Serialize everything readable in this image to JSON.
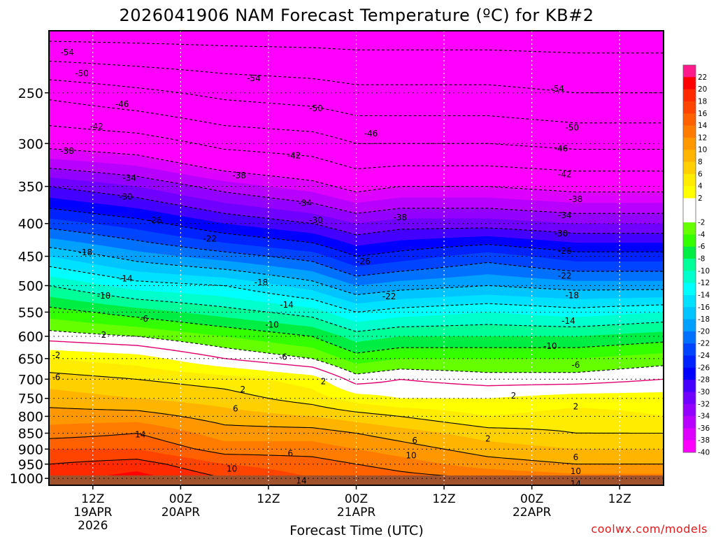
{
  "chart_data": {
    "type": "heatmap",
    "title": "2026041906 NAM Forecast Temperature (ºC) for KB#2",
    "xlabel": "Forecast Time (UTC)",
    "ylabel": "",
    "watermark": "coolwx.com/models",
    "y_ticks": [
      "250",
      "300",
      "350",
      "400",
      "450",
      "500",
      "550",
      "600",
      "650",
      "700",
      "750",
      "800",
      "850",
      "900",
      "950",
      "1000"
    ],
    "y_pressure_values": [
      250,
      300,
      350,
      400,
      450,
      500,
      550,
      600,
      650,
      700,
      750,
      800,
      850,
      900,
      950,
      1000
    ],
    "y_range_hpa": [
      200,
      1025
    ],
    "y_scale": "log",
    "x_range_hours": [
      0,
      84
    ],
    "x_ticks": [
      {
        "hour": 6,
        "labels": [
          "12Z",
          "19APR",
          "2026"
        ]
      },
      {
        "hour": 18,
        "labels": [
          "00Z",
          "20APR"
        ]
      },
      {
        "hour": 30,
        "labels": [
          "12Z"
        ]
      },
      {
        "hour": 42,
        "labels": [
          "00Z",
          "21APR"
        ]
      },
      {
        "hour": 54,
        "labels": [
          "12Z"
        ]
      },
      {
        "hour": 66,
        "labels": [
          "00Z",
          "22APR"
        ]
      },
      {
        "hour": 78,
        "labels": [
          "12Z"
        ]
      }
    ],
    "grid": true,
    "colorbar_labels": [
      "22",
      "20",
      "18",
      "16",
      "14",
      "12",
      "10",
      "8",
      "6",
      "4",
      "2",
      "-2",
      "-4",
      "-6",
      "-8",
      "-10",
      "-12",
      "-14",
      "-16",
      "-18",
      "-20",
      "-22",
      "-24",
      "-26",
      "-28",
      "-30",
      "-32",
      "-34",
      "-36",
      "-38",
      "-40"
    ],
    "colorbar_levels": [
      24,
      22,
      20,
      18,
      16,
      14,
      12,
      10,
      8,
      6,
      4,
      2,
      0,
      -2,
      -4,
      -6,
      -8,
      -10,
      -12,
      -14,
      -16,
      -18,
      -20,
      -22,
      -24,
      -26,
      -28,
      -30,
      -32,
      -34,
      -36,
      -38,
      -40
    ],
    "colorbar_colors": [
      "#ff1a8c",
      "#ff0000",
      "#ff2a00",
      "#ff4400",
      "#ff6000",
      "#ff7c00",
      "#ff9800",
      "#ffb400",
      "#ffd000",
      "#ffec00",
      "#ffff00",
      "#ffffff",
      "#ffffff",
      "#66ff00",
      "#33ff00",
      "#00ee44",
      "#00ff99",
      "#00ffcc",
      "#00ffff",
      "#00e0ff",
      "#00c4ff",
      "#00a0ff",
      "#0070ff",
      "#0044ff",
      "#0022ff",
      "#0000ff",
      "#4400ff",
      "#7000ff",
      "#9400ff",
      "#b800ff",
      "#dd00ff",
      "#ff00ff"
    ],
    "temperature_profile": {
      "pressure_hpa": [
        200,
        250,
        300,
        350,
        400,
        450,
        500,
        550,
        600,
        650,
        700,
        750,
        800,
        850,
        900,
        950,
        1000,
        1025
      ],
      "series": [
        {
          "hour": 0,
          "temp_c": [
            -60,
            -47,
            -39,
            -30,
            -23,
            -16,
            -10,
            -5,
            -1,
            4,
            7,
            9,
            11,
            13,
            16,
            18,
            19,
            19
          ]
        },
        {
          "hour": 12,
          "temp_c": [
            -60,
            -49,
            -40,
            -32,
            -25,
            -19,
            -13,
            -7,
            -2,
            3,
            6,
            8,
            11,
            14,
            16,
            19,
            21,
            21
          ]
        },
        {
          "hour": 24,
          "temp_c": [
            -60,
            -51,
            -43,
            -35,
            -28,
            -21,
            -14,
            -9,
            -4,
            0,
            5,
            7,
            9,
            11,
            13,
            16,
            18,
            18
          ]
        },
        {
          "hour": 36,
          "temp_c": [
            -60,
            -52,
            -44,
            -37,
            -30,
            -23,
            -17,
            -11,
            -6,
            -2,
            3,
            5,
            8,
            11,
            13,
            15,
            16,
            16
          ]
        },
        {
          "hour": 42,
          "temp_c": [
            -60,
            -53,
            -46,
            -39,
            -32,
            -26,
            -20,
            -14,
            -9,
            -5,
            -1,
            3,
            7,
            10,
            12,
            14,
            16,
            16
          ]
        },
        {
          "hour": 48,
          "temp_c": [
            -60,
            -53,
            -46,
            -38,
            -31,
            -25,
            -19,
            -13,
            -8,
            -4,
            0,
            2,
            6,
            9,
            11,
            13,
            15,
            15
          ]
        },
        {
          "hour": 60,
          "temp_c": [
            -60,
            -53,
            -46,
            -38,
            -31,
            -23,
            -18,
            -12,
            -8,
            -4,
            -1,
            2,
            4,
            7,
            9,
            11,
            14,
            14
          ]
        },
        {
          "hour": 72,
          "temp_c": [
            -60,
            -54,
            -47,
            -39,
            -32,
            -25,
            -19,
            -13,
            -8,
            -4,
            -1,
            3,
            5,
            6,
            8,
            10,
            13,
            13
          ]
        },
        {
          "hour": 84,
          "temp_c": [
            -60,
            -54,
            -47,
            -39,
            -32,
            -25,
            -19,
            -12,
            -7,
            -3,
            0,
            3,
            4,
            6,
            8,
            10,
            13,
            13
          ]
        }
      ]
    },
    "contour_labels": [
      {
        "text": "-54",
        "hour": 2.5,
        "p": 216
      },
      {
        "text": "-50",
        "hour": 4.5,
        "p": 233
      },
      {
        "text": "-54",
        "hour": 28,
        "p": 237
      },
      {
        "text": "-46",
        "hour": 10,
        "p": 260
      },
      {
        "text": "-50",
        "hour": 36.5,
        "p": 264
      },
      {
        "text": "-54",
        "hour": 69.5,
        "p": 246
      },
      {
        "text": "-42",
        "hour": 6.5,
        "p": 282
      },
      {
        "text": "-46",
        "hour": 44,
        "p": 289
      },
      {
        "text": "-50",
        "hour": 71.5,
        "p": 283
      },
      {
        "text": "-38",
        "hour": 2.5,
        "p": 308
      },
      {
        "text": "-42",
        "hour": 33.5,
        "p": 313
      },
      {
        "text": "-46",
        "hour": 70,
        "p": 305
      },
      {
        "text": "-34",
        "hour": 11,
        "p": 339
      },
      {
        "text": "-38",
        "hour": 26,
        "p": 336
      },
      {
        "text": "-42",
        "hour": 70.5,
        "p": 335
      },
      {
        "text": "-30",
        "hour": 10.5,
        "p": 363
      },
      {
        "text": "-34",
        "hour": 35,
        "p": 371
      },
      {
        "text": "-38",
        "hour": 48,
        "p": 391
      },
      {
        "text": "-38",
        "hour": 72,
        "p": 366
      },
      {
        "text": "-26",
        "hour": 14.5,
        "p": 395
      },
      {
        "text": "-30",
        "hour": 36.5,
        "p": 395
      },
      {
        "text": "-34",
        "hour": 70.5,
        "p": 388
      },
      {
        "text": "-22",
        "hour": 22,
        "p": 422
      },
      {
        "text": "-30",
        "hour": 70,
        "p": 414
      },
      {
        "text": "-18",
        "hour": 5,
        "p": 443
      },
      {
        "text": "-26",
        "hour": 43,
        "p": 458
      },
      {
        "text": "-26",
        "hour": 70.5,
        "p": 441
      },
      {
        "text": "-14",
        "hour": 10.5,
        "p": 487
      },
      {
        "text": "-18",
        "hour": 29,
        "p": 494
      },
      {
        "text": "-22",
        "hour": 70.5,
        "p": 482
      },
      {
        "text": "-10",
        "hour": 7.5,
        "p": 518
      },
      {
        "text": "-14",
        "hour": 32.5,
        "p": 535
      },
      {
        "text": "-22",
        "hour": 46.5,
        "p": 519
      },
      {
        "text": "-18",
        "hour": 71.5,
        "p": 517
      },
      {
        "text": "-6",
        "hour": 13,
        "p": 563
      },
      {
        "text": "-10",
        "hour": 30.5,
        "p": 575
      },
      {
        "text": "-14",
        "hour": 71,
        "p": 567
      },
      {
        "text": "2",
        "hour": 7.5,
        "p": 596
      },
      {
        "text": "-10",
        "hour": 68.5,
        "p": 621
      },
      {
        "text": "-6",
        "hour": 32,
        "p": 645
      },
      {
        "text": "-2",
        "hour": 1,
        "p": 641
      },
      {
        "text": "-6",
        "hour": 1,
        "p": 694
      },
      {
        "text": "-6",
        "hour": 72,
        "p": 664
      },
      {
        "text": "2",
        "hour": 26.5,
        "p": 725
      },
      {
        "text": "2",
        "hour": 37.5,
        "p": 705
      },
      {
        "text": "2",
        "hour": 63.5,
        "p": 742
      },
      {
        "text": "6",
        "hour": 25.5,
        "p": 777
      },
      {
        "text": "2",
        "hour": 72,
        "p": 772
      },
      {
        "text": "14",
        "hour": 12.5,
        "p": 853
      },
      {
        "text": "6",
        "hour": 33,
        "p": 913
      },
      {
        "text": "6",
        "hour": 50,
        "p": 872
      },
      {
        "text": "2",
        "hour": 60,
        "p": 866
      },
      {
        "text": "10",
        "hour": 49.5,
        "p": 920
      },
      {
        "text": "6",
        "hour": 72,
        "p": 926
      },
      {
        "text": "10",
        "hour": 25,
        "p": 965
      },
      {
        "text": "10",
        "hour": 72,
        "p": 974
      },
      {
        "text": "14",
        "hour": 34.5,
        "p": 1007
      },
      {
        "text": "14",
        "hour": 72,
        "p": 1019
      }
    ]
  }
}
